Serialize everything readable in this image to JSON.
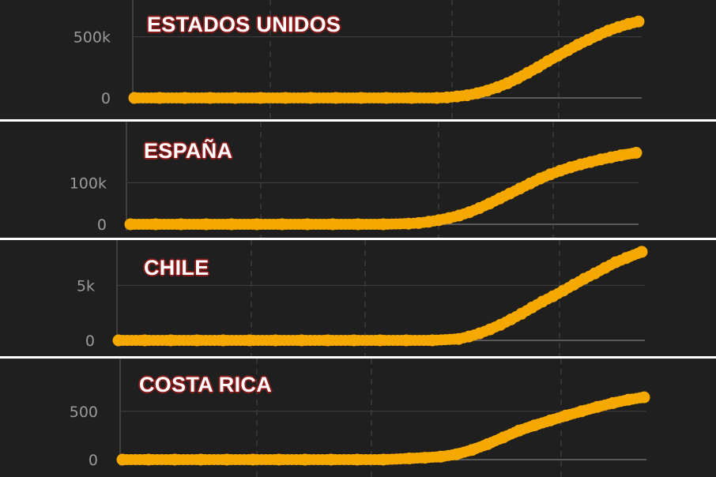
{
  "colors": {
    "background": "#1f1f1f",
    "series": "#f5a800",
    "title_outline": "#8b1a1a"
  },
  "chart_data": [
    {
      "type": "scatter",
      "title": "ESTADOS UNIDOS",
      "ylim": [
        0,
        620000
      ],
      "yticks": [
        {
          "value": 0,
          "label": "0"
        },
        {
          "value": 500000,
          "label": "500k"
        }
      ],
      "x": [
        0,
        5,
        10,
        15,
        20,
        25,
        30,
        35,
        40,
        45,
        50,
        55,
        60,
        62,
        64,
        66,
        68,
        70,
        72,
        74,
        76,
        78,
        80,
        82,
        84,
        86,
        88,
        90,
        92,
        94,
        96,
        98,
        100
      ],
      "values": [
        0,
        0,
        0,
        0,
        0,
        0,
        0,
        0,
        0,
        0,
        0,
        0,
        0,
        4000,
        12000,
        22000,
        38000,
        60000,
        88000,
        120000,
        160000,
        205000,
        250000,
        300000,
        345000,
        390000,
        435000,
        475000,
        515000,
        550000,
        580000,
        605000,
        625000
      ]
    },
    {
      "type": "scatter",
      "title": "ESPAÑA",
      "ylim": [
        0,
        190000
      ],
      "yticks": [
        {
          "value": 0,
          "label": "0"
        },
        {
          "value": 100000,
          "label": "100k"
        }
      ],
      "x": [
        0,
        5,
        10,
        15,
        20,
        25,
        30,
        35,
        40,
        45,
        50,
        55,
        57,
        59,
        61,
        63,
        65,
        67,
        69,
        71,
        73,
        75,
        77,
        79,
        81,
        83,
        85,
        87,
        89,
        91,
        93,
        95,
        97,
        100
      ],
      "values": [
        0,
        0,
        0,
        0,
        0,
        0,
        0,
        0,
        0,
        0,
        0,
        1500,
        3000,
        6000,
        10000,
        15000,
        21000,
        29000,
        39000,
        50000,
        62000,
        74000,
        86000,
        98000,
        110000,
        120000,
        129000,
        137000,
        144000,
        150000,
        156000,
        161000,
        166000,
        172000
      ]
    },
    {
      "type": "scatter",
      "title": "CHILE",
      "ylim": [
        0,
        8400
      ],
      "yticks": [
        {
          "value": 0,
          "label": "0"
        },
        {
          "value": 5000,
          "label": "5k"
        }
      ],
      "x": [
        0,
        5,
        10,
        15,
        20,
        25,
        30,
        35,
        40,
        45,
        50,
        55,
        60,
        65,
        67,
        69,
        71,
        73,
        75,
        77,
        79,
        81,
        83,
        85,
        87,
        89,
        91,
        93,
        95,
        97,
        100
      ],
      "values": [
        0,
        0,
        0,
        0,
        0,
        0,
        0,
        0,
        0,
        0,
        0,
        0,
        0,
        130,
        350,
        640,
        1000,
        1420,
        1900,
        2420,
        2980,
        3520,
        4000,
        4520,
        5060,
        5600,
        6080,
        6600,
        7100,
        7480,
        8050
      ]
    },
    {
      "type": "scatter",
      "title": "COSTA RICA",
      "ylim": [
        0,
        760
      ],
      "yticks": [
        {
          "value": 0,
          "label": "0"
        },
        {
          "value": 500,
          "label": "500"
        }
      ],
      "x": [
        0,
        5,
        10,
        15,
        20,
        25,
        30,
        35,
        40,
        45,
        50,
        55,
        58,
        61,
        64,
        67,
        70,
        73,
        76,
        79,
        82,
        85,
        88,
        91,
        94,
        97,
        100
      ],
      "values": [
        0,
        0,
        0,
        0,
        0,
        0,
        0,
        0,
        0,
        0,
        0,
        12,
        20,
        30,
        55,
        100,
        160,
        230,
        300,
        355,
        405,
        455,
        500,
        545,
        585,
        620,
        645
      ]
    }
  ]
}
